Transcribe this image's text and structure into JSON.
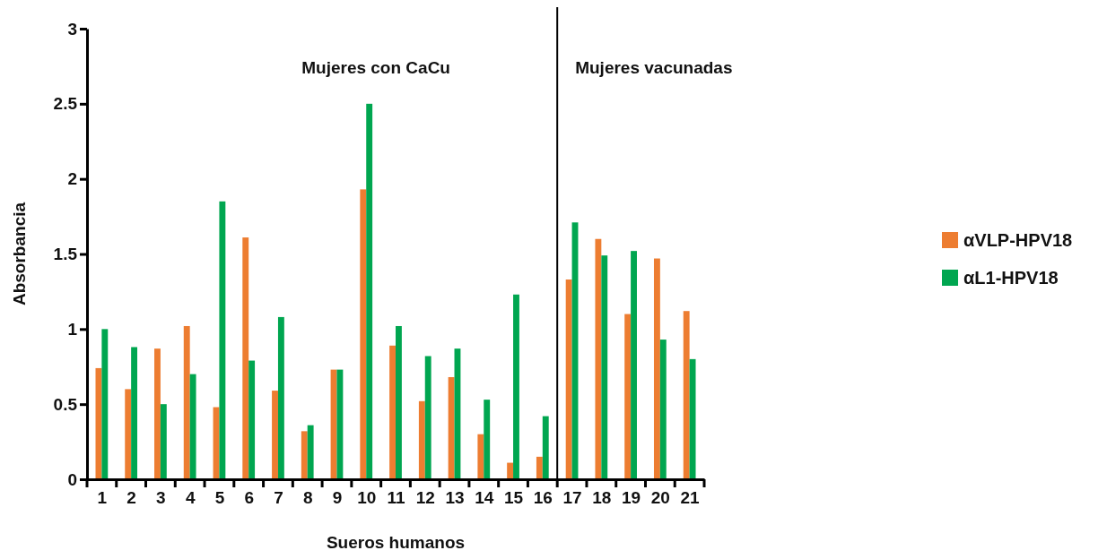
{
  "chart_data": {
    "type": "bar",
    "xlabel": "Sueros humanos",
    "ylabel": "Absorbancia",
    "x": [
      1,
      2,
      3,
      4,
      5,
      6,
      7,
      8,
      9,
      10,
      11,
      12,
      13,
      14,
      15,
      16,
      17,
      18,
      19,
      20,
      21
    ],
    "xlim": [
      0.5,
      21.5
    ],
    "xticks": [
      1,
      2,
      3,
      4,
      5,
      6,
      7,
      8,
      9,
      10,
      11,
      12,
      13,
      14,
      15,
      16,
      17,
      18,
      19,
      20,
      21
    ],
    "ylim": [
      0,
      3
    ],
    "yticks": [
      0,
      0.5,
      1,
      1.5,
      2,
      2.5,
      3
    ],
    "grid": false,
    "legend": "right",
    "series": [
      {
        "name": "αVLP-HPV18",
        "color": "#ed7d31",
        "values": [
          0.74,
          0.6,
          0.87,
          1.02,
          0.48,
          1.61,
          0.59,
          0.32,
          0.73,
          1.93,
          0.89,
          0.52,
          0.68,
          0.3,
          0.11,
          0.15,
          1.33,
          1.6,
          1.1,
          1.47,
          1.12
        ]
      },
      {
        "name": "αL1-HPV18",
        "color": "#00a650",
        "values": [
          1.0,
          0.88,
          0.5,
          0.7,
          1.85,
          0.79,
          1.08,
          0.36,
          0.73,
          2.5,
          1.02,
          0.82,
          0.87,
          0.53,
          1.23,
          0.42,
          1.71,
          1.49,
          1.52,
          0.93,
          0.8
        ]
      }
    ],
    "ref_lines": [
      {
        "axis": "x",
        "value": 16.5,
        "color": "#000000"
      }
    ],
    "annotations": [
      "Mujeres con CaCu",
      "Mujeres vacunadas"
    ]
  }
}
